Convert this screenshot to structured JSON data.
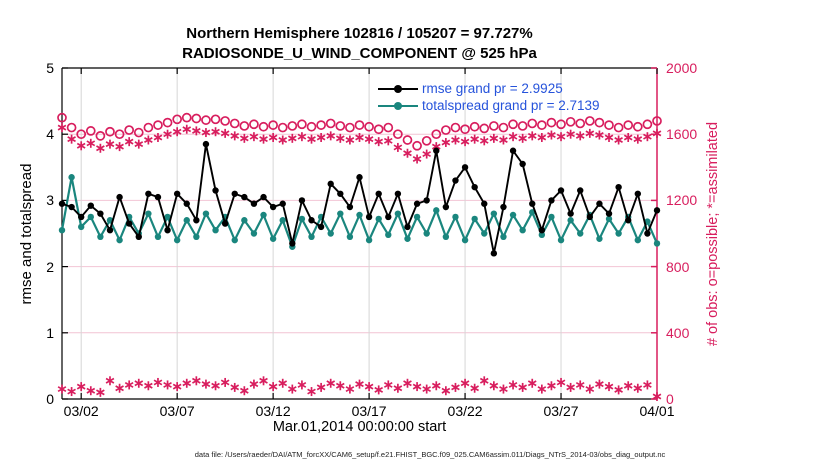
{
  "figure": {
    "title_line1": "Northern Hemisphere 102816 / 105207 = 97.727%",
    "title_line2": "RADIOSONDE_U_WIND_COMPONENT @ 525 hPa",
    "footer": "data file: /Users/raeder/DAI/ATM_forcXX/CAM6_setup/f.e21.FHIST_BGC.f09_025.CAM6assim.011/Diags_NTrS_2014-03/obs_diag_output.nc"
  },
  "legend": {
    "text_color": "#2653db",
    "items": [
      {
        "label": "rmse grand pr = 2.9925",
        "color": "#000000"
      },
      {
        "label": "totalspread grand pr = 2.7139",
        "color": "#1a867e"
      }
    ]
  },
  "colors": {
    "rmse": "#000000",
    "totalspread": "#1a867e",
    "obs_counts": "#d81e5e",
    "grid_vertical": "#d6d6d6",
    "grid_horizontal": "#f2c4d4",
    "legend_text": "#2653db",
    "axis_box": "#000000",
    "right_axis": "#d81e5e"
  },
  "chart_data": {
    "type": "line",
    "title": "Northern Hemisphere 102816 / 105207 = 97.727%",
    "subtitle": "RADIOSONDE_U_WIND_COMPONENT @ 525 hPa",
    "xlabel": "Mar.01,2014 00:00:00 start",
    "ylabel_left": "rmse and totalspread",
    "ylabel_right": "# of obs: o=possible; *=assimilated",
    "xlim_days": [
      0,
      31
    ],
    "ylim_left": [
      0,
      5
    ],
    "ylim_right": [
      0,
      2000
    ],
    "grid": true,
    "legend_position": "top-right-inside",
    "x_ticks": [
      {
        "pos": 1,
        "label": "03/02"
      },
      {
        "pos": 6,
        "label": "03/07"
      },
      {
        "pos": 11,
        "label": "03/12"
      },
      {
        "pos": 16,
        "label": "03/17"
      },
      {
        "pos": 21,
        "label": "03/22"
      },
      {
        "pos": 26,
        "label": "03/27"
      },
      {
        "pos": 31,
        "label": "04/01"
      }
    ],
    "left_ticks": [
      0,
      1,
      2,
      3,
      4,
      5
    ],
    "right_ticks": [
      0,
      400,
      800,
      1200,
      1600,
      2000
    ],
    "x": [
      0,
      0.5,
      1,
      1.5,
      2,
      2.5,
      3,
      3.5,
      4,
      4.5,
      5,
      5.5,
      6,
      6.5,
      7,
      7.5,
      8,
      8.5,
      9,
      9.5,
      10,
      10.5,
      11,
      11.5,
      12,
      12.5,
      13,
      13.5,
      14,
      14.5,
      15,
      15.5,
      16,
      16.5,
      17,
      17.5,
      18,
      18.5,
      19,
      19.5,
      20,
      20.5,
      21,
      21.5,
      22,
      22.5,
      23,
      23.5,
      24,
      24.5,
      25,
      25.5,
      26,
      26.5,
      27,
      27.5,
      28,
      28.5,
      29,
      29.5,
      30,
      30.5,
      31
    ],
    "series": [
      {
        "name": "rmse",
        "axis": "left",
        "style": "line",
        "marker": "dot",
        "color": "#000000",
        "grand_pr": 2.9925,
        "values": [
          2.95,
          2.9,
          2.75,
          2.92,
          2.8,
          2.55,
          3.05,
          2.65,
          2.45,
          3.1,
          3.05,
          2.55,
          3.1,
          2.95,
          2.7,
          3.85,
          3.15,
          2.65,
          3.1,
          3.05,
          2.95,
          3.05,
          2.9,
          2.95,
          2.35,
          3.0,
          2.7,
          2.6,
          3.25,
          3.1,
          2.9,
          3.35,
          2.75,
          3.1,
          2.75,
          3.1,
          2.6,
          2.95,
          3.0,
          3.75,
          2.9,
          3.3,
          3.5,
          3.2,
          2.95,
          2.2,
          2.9,
          3.75,
          3.55,
          2.95,
          2.55,
          3.0,
          3.15,
          2.8,
          3.15,
          2.75,
          2.95,
          2.8,
          3.2,
          2.7,
          3.1,
          2.5,
          2.85
        ]
      },
      {
        "name": "totalspread",
        "axis": "left",
        "style": "line",
        "marker": "dot",
        "color": "#1a867e",
        "grand_pr": 2.7139,
        "values": [
          2.55,
          3.35,
          2.6,
          2.75,
          2.45,
          2.7,
          2.4,
          2.75,
          2.5,
          2.8,
          2.45,
          2.75,
          2.4,
          2.7,
          2.45,
          2.8,
          2.55,
          2.75,
          2.4,
          2.7,
          2.5,
          2.78,
          2.42,
          2.7,
          2.3,
          2.72,
          2.45,
          2.75,
          2.5,
          2.8,
          2.45,
          2.78,
          2.4,
          2.72,
          2.48,
          2.8,
          2.42,
          2.75,
          2.5,
          2.85,
          2.45,
          2.75,
          2.4,
          2.72,
          2.5,
          2.8,
          2.45,
          2.78,
          2.55,
          2.82,
          2.48,
          2.75,
          2.4,
          2.7,
          2.5,
          2.78,
          2.42,
          2.72,
          2.5,
          2.75,
          2.4,
          2.68,
          2.35
        ]
      },
      {
        "name": "num_possible",
        "axis": "right",
        "style": "markers",
        "marker": "circle",
        "color": "#d81e5e",
        "values": [
          1700,
          1640,
          1600,
          1620,
          1590,
          1615,
          1600,
          1625,
          1610,
          1640,
          1655,
          1670,
          1690,
          1700,
          1695,
          1685,
          1690,
          1680,
          1665,
          1650,
          1660,
          1645,
          1655,
          1640,
          1650,
          1660,
          1645,
          1655,
          1665,
          1650,
          1640,
          1655,
          1645,
          1630,
          1640,
          1600,
          1565,
          1530,
          1560,
          1600,
          1625,
          1640,
          1630,
          1645,
          1635,
          1650,
          1640,
          1660,
          1650,
          1665,
          1655,
          1670,
          1660,
          1675,
          1665,
          1680,
          1670,
          1655,
          1640,
          1655,
          1645,
          1660,
          1680
        ]
      },
      {
        "name": "num_assimilated",
        "axis": "right",
        "style": "markers",
        "marker": "asterisk",
        "color": "#d81e5e",
        "values": [
          1640,
          1570,
          1530,
          1545,
          1515,
          1540,
          1525,
          1555,
          1540,
          1565,
          1580,
          1600,
          1615,
          1630,
          1620,
          1610,
          1615,
          1605,
          1590,
          1575,
          1585,
          1570,
          1580,
          1565,
          1575,
          1585,
          1570,
          1580,
          1590,
          1575,
          1565,
          1580,
          1570,
          1555,
          1560,
          1520,
          1485,
          1450,
          1480,
          1525,
          1550,
          1565,
          1555,
          1570,
          1560,
          1575,
          1565,
          1585,
          1575,
          1590,
          1580,
          1595,
          1585,
          1600,
          1590,
          1605,
          1595,
          1580,
          1565,
          1580,
          1570,
          1585,
          1605
        ]
      },
      {
        "name": "num_bottom_row",
        "axis": "right",
        "style": "markers",
        "marker": "asterisk",
        "color": "#d81e5e",
        "values": [
          60,
          45,
          75,
          50,
          40,
          110,
          65,
          85,
          95,
          80,
          100,
          85,
          75,
          95,
          110,
          90,
          80,
          100,
          70,
          50,
          90,
          110,
          75,
          95,
          60,
          85,
          45,
          70,
          95,
          80,
          60,
          90,
          75,
          55,
          85,
          65,
          95,
          75,
          60,
          80,
          50,
          70,
          95,
          65,
          110,
          80,
          60,
          85,
          70,
          95,
          60,
          80,
          100,
          70,
          85,
          60,
          90,
          75,
          55,
          80,
          65,
          85,
          15
        ]
      }
    ]
  }
}
